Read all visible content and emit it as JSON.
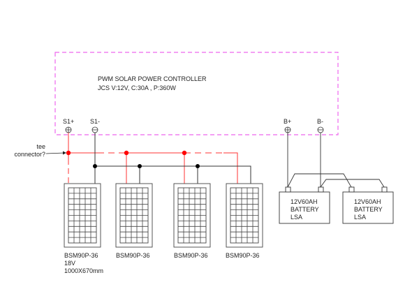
{
  "controller": {
    "title": "PWM SOLAR POWER CONTROLLER",
    "spec": "JCS V:12V, C:30A , P:360W",
    "terminals": {
      "s1_plus": "S1+",
      "s1_minus": "S1-",
      "b_plus": "B+",
      "b_minus": "B-"
    }
  },
  "annotation": {
    "line1": "tee",
    "line2": "connector?"
  },
  "panels": [
    {
      "model": "BSM90P-36",
      "voltage": "18V",
      "size": "1000X670mm"
    },
    {
      "model": "BSM90P-36"
    },
    {
      "model": "BSM90P-36"
    },
    {
      "model": "BSM90P-36"
    }
  ],
  "batteries": [
    {
      "line1": "12V60AH",
      "line2": "BATTERY",
      "line3": "LSA"
    },
    {
      "line1": "12V60AH",
      "line2": "BATTERY",
      "line3": "LSA"
    }
  ],
  "colors": {
    "positive": "#ff3333",
    "negative": "#333333",
    "controller_border": "#ee66ee",
    "node_positive": "#ff0000",
    "node_negative": "#000000"
  }
}
